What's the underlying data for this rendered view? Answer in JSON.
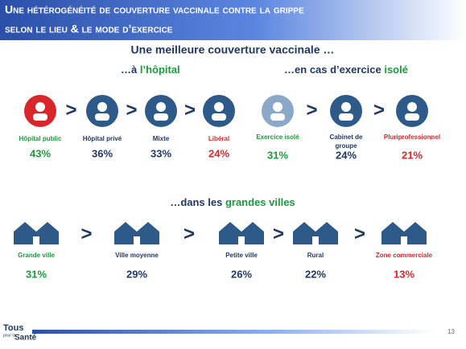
{
  "header": {
    "title_lines": [
      "Une hétérogénéité de couverture vaccinale contre la grippe",
      "selon le lieu & le mode d’exercice"
    ]
  },
  "subtitle": "Une meilleure couverture vaccinale …",
  "sections": [
    {
      "heading": [
        "…à ",
        "l’hôpital"
      ],
      "items": [
        {
          "label": [
            "Hôpital public"
          ],
          "value": "43%",
          "color": "#1a9a3c"
        },
        {
          "label": [
            "Hôpital privé"
          ],
          "value": "36%",
          "color": "#1f3864"
        },
        {
          "label": [
            "Mixte"
          ],
          "value": "33%",
          "color": "#1f3864"
        },
        {
          "label": [
            "Libéral"
          ],
          "value": "24%",
          "color": "#d9262b"
        }
      ]
    },
    {
      "heading": [
        "…en cas d’exercice ",
        "isolé"
      ],
      "items": [
        {
          "label": [
            "Exercice isolé"
          ],
          "value": "31%",
          "color": "#1a9a3c"
        },
        {
          "label": [
            "Cabinet de",
            "groupe"
          ],
          "value": "24%",
          "color": "#1f3864"
        },
        {
          "label": [
            "Pluriprofessionnel"
          ],
          "value": "21%",
          "color": "#d9262b"
        }
      ]
    },
    {
      "heading": [
        "…dans les ",
        "grandes villes"
      ],
      "items": [
        {
          "label": [
            "Grande ville"
          ],
          "value": "31%",
          "color": "#1a9a3c"
        },
        {
          "label": [
            "Ville moyenne"
          ],
          "value": "29%",
          "color": "#1f3864"
        },
        {
          "label": [
            "Petite ville"
          ],
          "value": "26%",
          "color": "#1f3864"
        },
        {
          "label": [
            "Rural"
          ],
          "value": "22%",
          "color": "#1f3864"
        },
        {
          "label": [
            "Zone commerciale"
          ],
          "value": "13%",
          "color": "#d9262b"
        }
      ]
    }
  ],
  "footer": {
    "logo": [
      "Tous",
      "pour la",
      "Santé"
    ],
    "page": "13"
  }
}
